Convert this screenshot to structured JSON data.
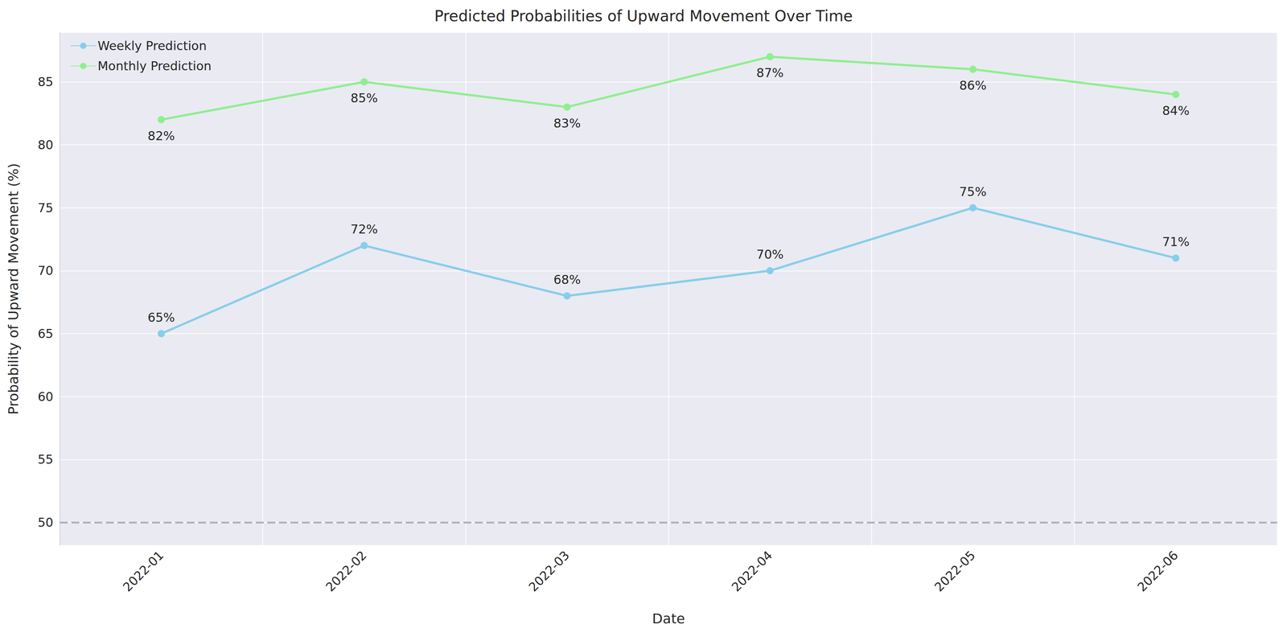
{
  "chart_data": {
    "type": "line",
    "title": "Predicted Probabilities of Upward Movement Over Time",
    "x_label": "Date",
    "y_label": "Probability of Upward Movement (%)",
    "categories": [
      "2022-01",
      "2022-02",
      "2022-03",
      "2022-04",
      "2022-05",
      "2022-06"
    ],
    "series": [
      {
        "name": "Weekly Prediction",
        "color": "#87ceeb",
        "marker": "circle",
        "line_style": "solid",
        "values": [
          65,
          72,
          68,
          70,
          75,
          71
        ],
        "value_labels": [
          "65%",
          "72%",
          "68%",
          "70%",
          "75%",
          "71%"
        ]
      },
      {
        "name": "Monthly Prediction",
        "color": "#90ee90",
        "marker": "circle",
        "line_style": "solid",
        "values": [
          82,
          85,
          83,
          87,
          86,
          84
        ],
        "value_labels": [
          "82%",
          "85%",
          "83%",
          "87%",
          "86%",
          "84%"
        ]
      }
    ],
    "ylim": [
      48.2,
      88.9
    ],
    "yticks": [
      50,
      55,
      60,
      65,
      70,
      75,
      80,
      85
    ],
    "reference_line": 50,
    "grid": true,
    "legend": "upper left",
    "data_labels": true
  }
}
